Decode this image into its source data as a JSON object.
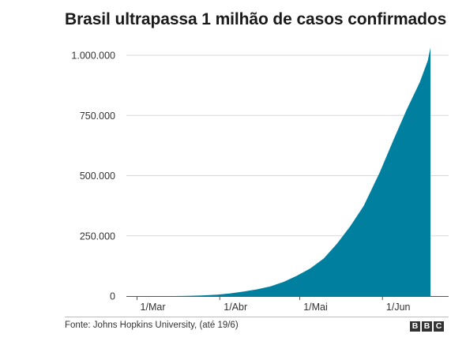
{
  "title": "Brasil ultrapassa 1 milhão de casos confirmados",
  "source": "Fonte: Johns Hopkins University, (até 19/6)",
  "logo": [
    "B",
    "B",
    "C"
  ],
  "colors": {
    "area": "#00809e",
    "grid": "#d9d9d9",
    "axis": "#555555"
  },
  "chart_data": {
    "type": "area",
    "title": "Brasil ultrapassa 1 milhão de casos confirmados",
    "xlabel": "",
    "ylabel": "",
    "x_range": [
      "2020-02-26",
      "2020-06-19"
    ],
    "ylim": [
      0,
      1000000
    ],
    "grid": true,
    "y_ticks": [
      {
        "value": 0,
        "label": "0"
      },
      {
        "value": 250000,
        "label": "250.000"
      },
      {
        "value": 500000,
        "label": "500.000"
      },
      {
        "value": 750000,
        "label": "750.000"
      },
      {
        "value": 1000000,
        "label": "1.000.000"
      }
    ],
    "x_ticks": [
      {
        "date": "2020-03-01",
        "label": "1/Mar"
      },
      {
        "date": "2020-04-01",
        "label": "1/Abr"
      },
      {
        "date": "2020-05-01",
        "label": "1/Mai"
      },
      {
        "date": "2020-06-01",
        "label": "1/Jun"
      }
    ],
    "series": [
      {
        "points": [
          [
            "2020-02-26",
            1
          ],
          [
            "2020-03-01",
            2
          ],
          [
            "2020-03-10",
            30
          ],
          [
            "2020-03-15",
            200
          ],
          [
            "2020-03-20",
            900
          ],
          [
            "2020-03-25",
            2400
          ],
          [
            "2020-03-31",
            5700
          ],
          [
            "2020-04-05",
            11000
          ],
          [
            "2020-04-10",
            19000
          ],
          [
            "2020-04-15",
            28000
          ],
          [
            "2020-04-20",
            40000
          ],
          [
            "2020-04-25",
            59000
          ],
          [
            "2020-04-30",
            85000
          ],
          [
            "2020-05-05",
            115000
          ],
          [
            "2020-05-10",
            156000
          ],
          [
            "2020-05-15",
            218000
          ],
          [
            "2020-05-20",
            291000
          ],
          [
            "2020-05-25",
            375000
          ],
          [
            "2020-05-31",
            514000
          ],
          [
            "2020-06-05",
            645000
          ],
          [
            "2020-06-10",
            772000
          ],
          [
            "2020-06-15",
            888000
          ],
          [
            "2020-06-18",
            978000
          ],
          [
            "2020-06-19",
            1032000
          ]
        ]
      }
    ]
  }
}
